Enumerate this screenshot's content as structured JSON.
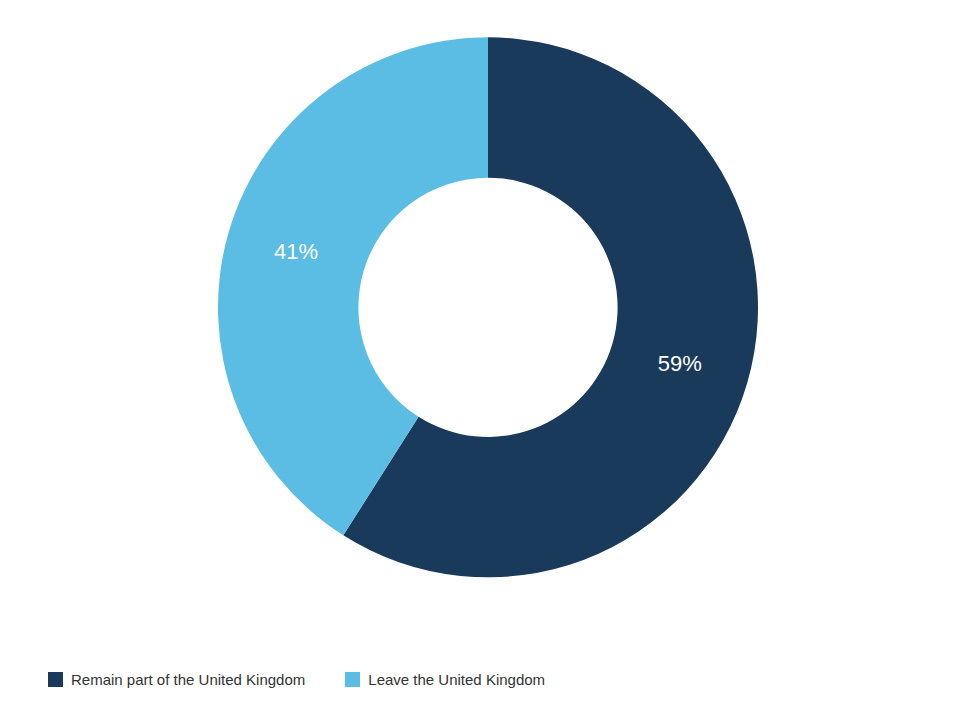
{
  "chart_data": {
    "type": "donut",
    "categories": [
      "Remain part of the United Kingdom",
      "Leave the United Kingdom"
    ],
    "values": [
      59,
      41
    ],
    "colors": [
      "#1a3a5c",
      "#5bbde4"
    ],
    "data_labels": true,
    "value_labels": [
      "59%",
      "41%"
    ],
    "legend": "lower left"
  }
}
